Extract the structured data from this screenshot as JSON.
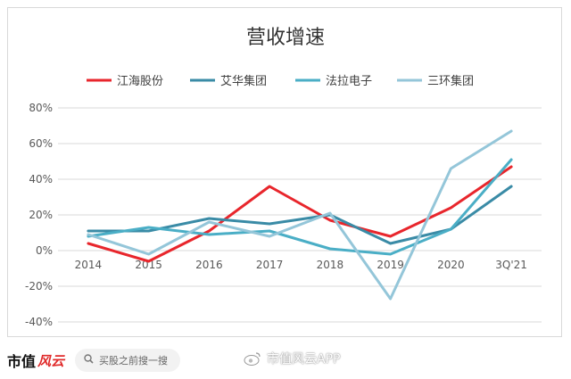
{
  "chart_data": {
    "type": "line",
    "title": "营收增速",
    "categories": [
      "2014",
      "2015",
      "2016",
      "2017",
      "2018",
      "2019",
      "2020",
      "3Q'21"
    ],
    "yticks": [
      "80%",
      "60%",
      "40%",
      "20%",
      "0%",
      "-20%",
      "-40%"
    ],
    "ylim": [
      -40,
      80
    ],
    "grid": true,
    "legend_position": "top",
    "series": [
      {
        "name": "江海股份",
        "color": "#e8262c",
        "values": [
          4,
          -6,
          11,
          36,
          17,
          8,
          24,
          47
        ]
      },
      {
        "name": "艾华集团",
        "color": "#3a8ba6",
        "values": [
          11,
          11,
          18,
          15,
          20,
          4,
          12,
          36
        ]
      },
      {
        "name": "法拉电子",
        "color": "#4aaec6",
        "values": [
          8,
          13,
          9,
          11,
          1,
          -2,
          12,
          51
        ]
      },
      {
        "name": "三环集团",
        "color": "#94c6d9",
        "values": [
          9,
          -2,
          16,
          8,
          21,
          -27,
          46,
          67
        ]
      }
    ]
  },
  "footer": {
    "brand_part1": "市值",
    "brand_part2": "风云",
    "search_text": "买股之前搜一搜",
    "search_icon": "search-icon",
    "weibo_handle": "市值风云APP"
  }
}
